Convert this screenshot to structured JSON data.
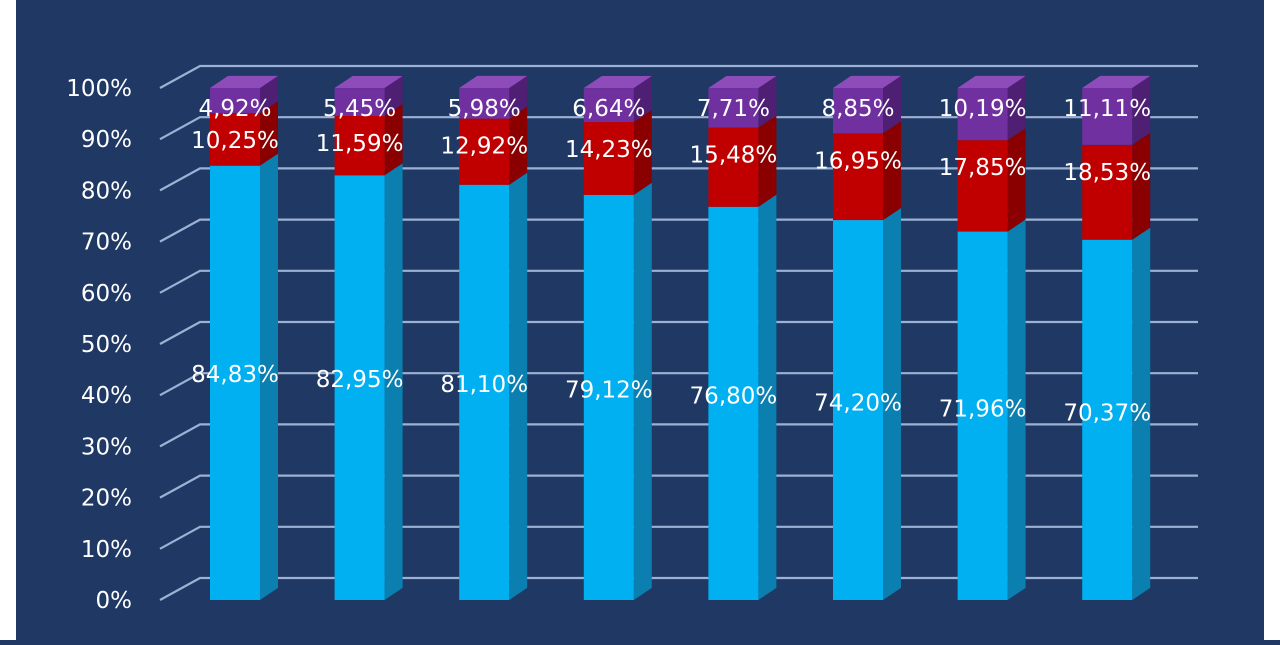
{
  "chart_data": {
    "type": "bar",
    "stacked": true,
    "percent_stacked": true,
    "three_d": true,
    "title": "",
    "xlabel": "",
    "ylabel": "",
    "ylim": [
      0,
      100
    ],
    "y_ticks": [
      "0%",
      "10%",
      "20%",
      "30%",
      "40%",
      "50%",
      "60%",
      "70%",
      "80%",
      "90%",
      "100%"
    ],
    "grid": true,
    "legend": "none",
    "categories": [
      "",
      "",
      "",
      "",
      "",
      "",
      "",
      ""
    ],
    "series": [
      {
        "color": "#00b0f0",
        "side_color": "#0a7fb0",
        "top_color": "#41c8f7",
        "values": [
          84.83,
          82.95,
          81.1,
          79.12,
          76.8,
          74.2,
          71.96,
          70.37
        ],
        "labels": [
          "84,83%",
          "82,95%",
          "81,10%",
          "79,12%",
          "76,80%",
          "74,20%",
          "71,96%",
          "70,37%"
        ]
      },
      {
        "color": "#c00000",
        "side_color": "#8a0000",
        "top_color": "#e04040",
        "values": [
          10.25,
          11.59,
          12.92,
          14.23,
          15.48,
          16.95,
          17.85,
          18.53
        ],
        "labels": [
          "10,25%",
          "11,59%",
          "12,92%",
          "14,23%",
          "15,48%",
          "16,95%",
          "17,85%",
          "18,53%"
        ]
      },
      {
        "color": "#7030a0",
        "side_color": "#4e1f72",
        "top_color": "#8d4cba",
        "values": [
          4.92,
          5.45,
          5.98,
          6.64,
          7.71,
          8.85,
          10.19,
          11.11
        ],
        "labels": [
          "4,92%",
          "5,45%",
          "5,98%",
          "6,64%",
          "7,71%",
          "8,85%",
          "10,19%",
          "11,11%"
        ]
      }
    ],
    "background_color": "#1f3864",
    "gridline_color": "#b4c7e7"
  }
}
